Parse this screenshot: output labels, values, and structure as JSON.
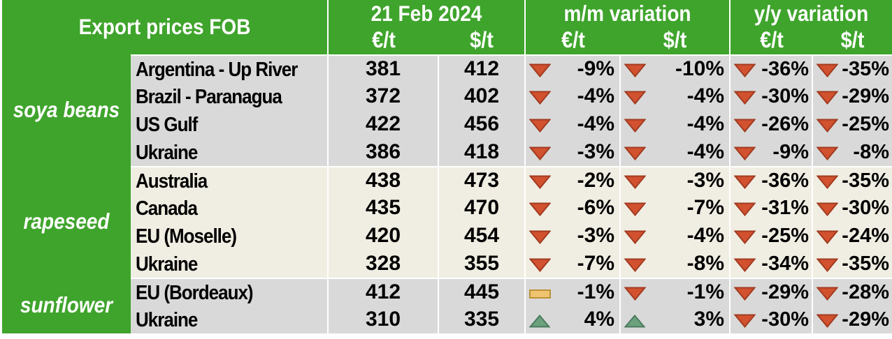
{
  "title": "Export prices FOB",
  "header": {
    "date": "21 Feb 2024",
    "mm": "m/m variation",
    "yy": "y/y variation",
    "eur": "€/t",
    "usd": "$/t"
  },
  "colors": {
    "green": "#3FA42C",
    "gray_row": "#D9D9D9",
    "cream_row": "#F0EDE2",
    "down_icon": "#D2512F",
    "up_icon": "#6CA17D",
    "flat_icon": "#EFC36F",
    "text": "#000000",
    "header_text": "#FFFFFF"
  },
  "groups": [
    {
      "label": "soya beans",
      "rows": [
        {
          "name": "Argentina - Up River",
          "eur": "381",
          "usd": "412",
          "mm_eur": {
            "icon": "down",
            "value": "-9%"
          },
          "mm_usd": {
            "icon": "down",
            "value": "-10%"
          },
          "yy_eur": {
            "icon": "down",
            "value": "-36%"
          },
          "yy_usd": {
            "icon": "down",
            "value": "-35%"
          }
        },
        {
          "name": "Brazil - Paranagua",
          "eur": "372",
          "usd": "402",
          "mm_eur": {
            "icon": "down",
            "value": "-4%"
          },
          "mm_usd": {
            "icon": "down",
            "value": "-4%"
          },
          "yy_eur": {
            "icon": "down",
            "value": "-30%"
          },
          "yy_usd": {
            "icon": "down",
            "value": "-29%"
          }
        },
        {
          "name": "US Gulf",
          "eur": "422",
          "usd": "456",
          "mm_eur": {
            "icon": "down",
            "value": "-4%"
          },
          "mm_usd": {
            "icon": "down",
            "value": "-4%"
          },
          "yy_eur": {
            "icon": "down",
            "value": "-26%"
          },
          "yy_usd": {
            "icon": "down",
            "value": "-25%"
          }
        },
        {
          "name": "Ukraine",
          "eur": "386",
          "usd": "418",
          "mm_eur": {
            "icon": "down",
            "value": "-3%"
          },
          "mm_usd": {
            "icon": "down",
            "value": "-4%"
          },
          "yy_eur": {
            "icon": "down",
            "value": "-9%"
          },
          "yy_usd": {
            "icon": "down",
            "value": "-8%"
          }
        }
      ]
    },
    {
      "label": "rapeseed",
      "rows": [
        {
          "name": "Australia",
          "eur": "438",
          "usd": "473",
          "mm_eur": {
            "icon": "down",
            "value": "-2%"
          },
          "mm_usd": {
            "icon": "down",
            "value": "-3%"
          },
          "yy_eur": {
            "icon": "down",
            "value": "-36%"
          },
          "yy_usd": {
            "icon": "down",
            "value": "-35%"
          }
        },
        {
          "name": "Canada",
          "eur": "435",
          "usd": "470",
          "mm_eur": {
            "icon": "down",
            "value": "-6%"
          },
          "mm_usd": {
            "icon": "down",
            "value": "-7%"
          },
          "yy_eur": {
            "icon": "down",
            "value": "-31%"
          },
          "yy_usd": {
            "icon": "down",
            "value": "-30%"
          }
        },
        {
          "name": "EU (Moselle)",
          "eur": "420",
          "usd": "454",
          "mm_eur": {
            "icon": "down",
            "value": "-3%"
          },
          "mm_usd": {
            "icon": "down",
            "value": "-4%"
          },
          "yy_eur": {
            "icon": "down",
            "value": "-25%"
          },
          "yy_usd": {
            "icon": "down",
            "value": "-24%"
          }
        },
        {
          "name": "Ukraine",
          "eur": "328",
          "usd": "355",
          "mm_eur": {
            "icon": "down",
            "value": "-7%"
          },
          "mm_usd": {
            "icon": "down",
            "value": "-8%"
          },
          "yy_eur": {
            "icon": "down",
            "value": "-34%"
          },
          "yy_usd": {
            "icon": "down",
            "value": "-35%"
          }
        }
      ]
    },
    {
      "label": "sunflower",
      "rows": [
        {
          "name": "EU (Bordeaux)",
          "eur": "412",
          "usd": "445",
          "mm_eur": {
            "icon": "flat",
            "value": "-1%"
          },
          "mm_usd": {
            "icon": "down",
            "value": "-1%"
          },
          "yy_eur": {
            "icon": "down",
            "value": "-29%"
          },
          "yy_usd": {
            "icon": "down",
            "value": "-28%"
          }
        },
        {
          "name": "Ukraine",
          "eur": "310",
          "usd": "335",
          "mm_eur": {
            "icon": "up",
            "value": "4%"
          },
          "mm_usd": {
            "icon": "up",
            "value": "3%"
          },
          "yy_eur": {
            "icon": "down",
            "value": "-30%"
          },
          "yy_usd": {
            "icon": "down",
            "value": "-29%"
          }
        }
      ]
    }
  ]
}
